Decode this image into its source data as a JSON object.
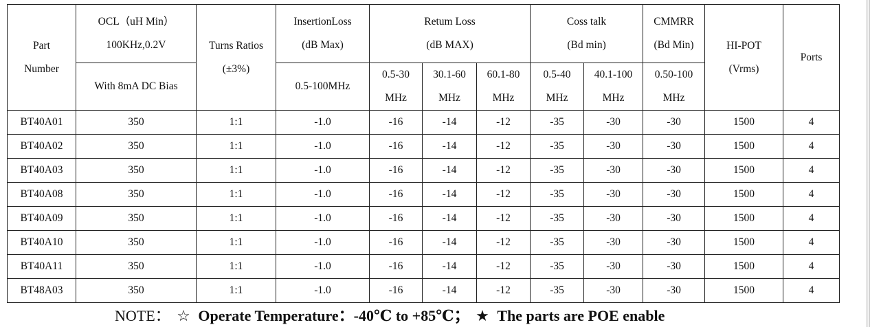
{
  "headers": {
    "part_number": [
      "Part",
      "Number"
    ],
    "ocl": [
      "OCL（uH Min）",
      "100KHz,0.2V"
    ],
    "ocl_sub": "With 8mA DC Bias",
    "turns": [
      "Turns Ratios",
      "(±3%)"
    ],
    "insertion": [
      "InsertionLoss",
      "(dB Max)"
    ],
    "insertion_sub": "0.5-100MHz",
    "return_loss": [
      "Retum Loss",
      "(dB MAX)"
    ],
    "return_sub": [
      [
        "0.5-30",
        "MHz"
      ],
      [
        "30.1-60",
        "MHz"
      ],
      [
        "60.1-80",
        "MHz"
      ]
    ],
    "cross_talk": [
      "Coss talk",
      "(Bd min)"
    ],
    "cross_sub": [
      [
        "0.5-40",
        "MHz"
      ],
      [
        "40.1-100",
        "MHz"
      ]
    ],
    "cmmrr": [
      "CMMRR",
      "(Bd Min)"
    ],
    "cmmrr_sub": [
      "0.50-100",
      "MHz"
    ],
    "hipot": [
      "HI-POT",
      "(Vrms)"
    ],
    "ports": "Ports"
  },
  "rows": [
    [
      "BT40A01",
      "350",
      "1:1",
      "-1.0",
      "-16",
      "-14",
      "-12",
      "-35",
      "-30",
      "-30",
      "1500",
      "4"
    ],
    [
      "BT40A02",
      "350",
      "1:1",
      "-1.0",
      "-16",
      "-14",
      "-12",
      "-35",
      "-30",
      "-30",
      "1500",
      "4"
    ],
    [
      "BT40A03",
      "350",
      "1:1",
      "-1.0",
      "-16",
      "-14",
      "-12",
      "-35",
      "-30",
      "-30",
      "1500",
      "4"
    ],
    [
      "BT40A08",
      "350",
      "1:1",
      "-1.0",
      "-16",
      "-14",
      "-12",
      "-35",
      "-30",
      "-30",
      "1500",
      "4"
    ],
    [
      "BT40A09",
      "350",
      "1:1",
      "-1.0",
      "-16",
      "-14",
      "-12",
      "-35",
      "-30",
      "-30",
      "1500",
      "4"
    ],
    [
      "BT40A10",
      "350",
      "1:1",
      "-1.0",
      "-16",
      "-14",
      "-12",
      "-35",
      "-30",
      "-30",
      "1500",
      "4"
    ],
    [
      "BT40A11",
      "350",
      "1:1",
      "-1.0",
      "-16",
      "-14",
      "-12",
      "-35",
      "-30",
      "-30",
      "1500",
      "4"
    ],
    [
      "BT48A03",
      "350",
      "1:1",
      "-1.0",
      "-16",
      "-14",
      "-12",
      "-35",
      "-30",
      "-30",
      "1500",
      "4"
    ]
  ],
  "note": {
    "prefix": "NOTE：",
    "star_outline": "☆",
    "temp": "Operate Temperature：-40℃ to +85℃；",
    "star_solid": "★",
    "poe": "The parts are POE enable"
  }
}
